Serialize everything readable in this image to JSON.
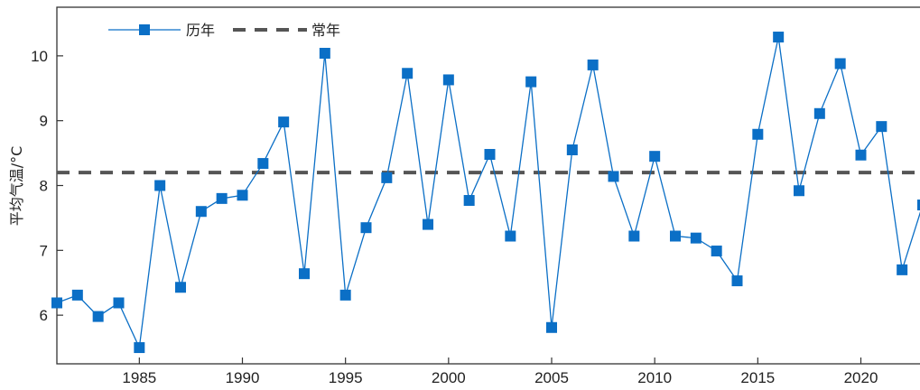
{
  "chart_data": {
    "type": "line",
    "title": "",
    "xlabel": "",
    "ylabel": "平均气温/°C",
    "xlim": [
      1981,
      2023
    ],
    "ylim": [
      5.25,
      10.75
    ],
    "x_ticks": [
      1985,
      1990,
      1995,
      2000,
      2005,
      2010,
      2015,
      2020
    ],
    "y_ticks": [
      6,
      7,
      8,
      9,
      10
    ],
    "grid": false,
    "legend_position": "top-left",
    "series": [
      {
        "name": "历年",
        "style": "solid-line-square-markers",
        "color": "#0b6fc6",
        "x": [
          1981,
          1982,
          1983,
          1984,
          1985,
          1986,
          1987,
          1988,
          1989,
          1990,
          1991,
          1992,
          1993,
          1994,
          1995,
          1996,
          1997,
          1998,
          1999,
          2000,
          2001,
          2002,
          2003,
          2004,
          2005,
          2006,
          2007,
          2008,
          2009,
          2010,
          2011,
          2012,
          2013,
          2014,
          2015,
          2016,
          2017,
          2018,
          2019,
          2020,
          2021,
          2022,
          2023
        ],
        "values": [
          6.19,
          6.31,
          5.98,
          6.19,
          5.5,
          8.0,
          6.43,
          7.6,
          7.8,
          7.85,
          8.34,
          8.98,
          6.64,
          10.04,
          6.31,
          7.35,
          8.12,
          9.73,
          7.4,
          9.63,
          7.77,
          8.48,
          7.22,
          9.6,
          5.81,
          8.55,
          9.86,
          8.14,
          7.22,
          8.45,
          7.22,
          7.19,
          6.99,
          6.53,
          8.79,
          10.29,
          7.92,
          9.11,
          9.88,
          8.47,
          8.91,
          6.7,
          7.7
        ]
      },
      {
        "name": "常年",
        "style": "dashed-line",
        "color": "#555555",
        "values": [
          8.2
        ]
      }
    ]
  }
}
